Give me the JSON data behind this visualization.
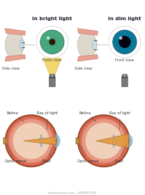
{
  "bg_color": "#ffffff",
  "title_bright": "In bright light",
  "title_dim": "In dim light",
  "label_side": "Side view",
  "label_front": "Front view",
  "label_retina": "Retina",
  "label_ray": "Ray of light",
  "label_pupil": "Pupil",
  "label_optic": "Optic nerve",
  "watermark": "shutterstock.com · 2498807435",
  "iris_color_bright": "#4aaa80",
  "iris_color_dim": "#0a7a9a",
  "pupil_color_bright": "#2a1800",
  "pupil_color_dim": "#050510",
  "sclera_color": "#ddd8cc",
  "skin_color": "#e8a090",
  "skin_dark": "#c07868",
  "lens_side_color": "#c8dce8",
  "light_beam_color": "#f0c840",
  "light_beam_edge": "#c8a020",
  "torch_body": "#787878",
  "torch_head": "#585858",
  "torch_lens": "#a0b8c8",
  "eye_outer": "#c85838",
  "eye_mid": "#d87060",
  "eye_inner": "#e89880",
  "eye_vitreous": "#f0d0b8",
  "cornea_color": "#90b8d0",
  "lens_color": "#a8c8e0",
  "ray_color": "#e09838",
  "nerve_color": "#c08840",
  "iris_anatomy_color": "#d06828",
  "dark_line": "#333333",
  "ann_color": "#333333"
}
